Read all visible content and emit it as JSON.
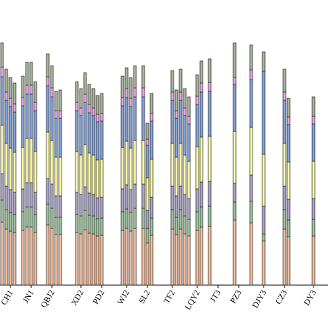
{
  "chart_data": {
    "type": "stacked_bar",
    "categories": [
      null,
      null,
      "CH1",
      null,
      null,
      null,
      null,
      "JN1",
      null,
      null,
      null,
      null,
      "QBJ2",
      null,
      null,
      null,
      null,
      null,
      null,
      "XD2",
      null,
      null,
      null,
      null,
      "PD2",
      null,
      null,
      null,
      null,
      null,
      "WJ2",
      null,
      null,
      null,
      null,
      "SL2",
      null,
      null,
      null,
      null,
      null,
      "TF2",
      null,
      null,
      null,
      null,
      null,
      "LQY2",
      null,
      null,
      null,
      null,
      "JT3",
      null,
      null,
      null,
      null,
      "PZ3",
      null,
      null,
      null,
      null,
      null,
      "DJY3",
      null,
      null,
      null,
      null,
      "CZ3",
      null,
      null,
      null,
      null,
      null,
      null,
      "DY3",
      null,
      null
    ],
    "ylim": [
      0,
      400
    ],
    "series": [
      {
        "color": "#f6bc9c",
        "values": [
          91,
          81,
          78,
          76,
          null,
          79,
          84,
          84,
          76,
          null,
          null,
          87,
          82,
          73,
          73,
          null,
          null,
          null,
          76,
          74,
          80,
          75,
          74,
          71,
          72,
          null,
          null,
          null,
          null,
          79,
          82,
          78,
          82,
          null,
          82,
          61,
          72,
          null,
          null,
          null,
          null,
          81,
          73,
          81,
          74,
          71,
          null,
          79,
          84,
          null,
          85,
          null,
          null,
          null,
          null,
          null,
          94,
          null,
          null,
          null,
          90,
          null,
          null,
          64,
          null,
          null,
          null,
          null,
          81,
          70,
          null,
          null,
          null,
          null,
          null,
          71,
          null,
          null
        ]
      },
      {
        "color": "#98c498",
        "values": [
          32,
          28,
          27,
          26,
          null,
          27,
          29,
          29,
          26,
          null,
          null,
          30,
          29,
          25,
          25,
          null,
          null,
          null,
          26,
          26,
          28,
          26,
          26,
          25,
          25,
          null,
          null,
          null,
          null,
          27,
          28,
          27,
          29,
          null,
          29,
          21,
          25,
          null,
          null,
          null,
          null,
          28,
          25,
          28,
          26,
          24,
          null,
          27,
          29,
          null,
          29,
          null,
          null,
          null,
          null,
          null,
          26,
          null,
          null,
          null,
          31,
          null,
          null,
          10,
          null,
          null,
          null,
          null,
          28,
          24,
          null,
          null,
          null,
          null,
          null,
          24,
          null,
          null
        ]
      },
      {
        "color": "#aba3cc",
        "values": [
          38,
          34,
          33,
          32,
          null,
          33,
          35,
          35,
          32,
          null,
          null,
          37,
          35,
          31,
          31,
          null,
          null,
          null,
          32,
          31,
          34,
          32,
          31,
          30,
          30,
          null,
          null,
          null,
          null,
          33,
          35,
          33,
          35,
          null,
          35,
          26,
          30,
          null,
          null,
          null,
          null,
          34,
          31,
          34,
          31,
          30,
          null,
          33,
          36,
          null,
          36,
          null,
          null,
          null,
          null,
          null,
          27,
          null,
          null,
          null,
          38,
          null,
          null,
          40,
          null,
          null,
          null,
          null,
          34,
          30,
          null,
          null,
          null,
          null,
          null,
          30,
          null,
          null
        ]
      },
      {
        "color": "#fbfba4",
        "values": [
          70,
          62,
          60,
          58,
          null,
          60,
          64,
          64,
          59,
          null,
          null,
          67,
          63,
          56,
          56,
          null,
          null,
          null,
          59,
          57,
          61,
          58,
          57,
          55,
          55,
          null,
          null,
          null,
          null,
          60,
          63,
          60,
          63,
          null,
          63,
          47,
          55,
          null,
          null,
          null,
          null,
          62,
          56,
          62,
          57,
          54,
          null,
          61,
          65,
          null,
          65,
          null,
          null,
          null,
          null,
          null,
          75,
          null,
          null,
          null,
          69,
          null,
          null,
          75,
          null,
          null,
          null,
          null,
          62,
          54,
          null,
          null,
          null,
          null,
          null,
          54,
          null,
          null
        ]
      },
      {
        "color": "#82a2dc",
        "values": [
          70,
          62,
          60,
          58,
          null,
          60,
          64,
          64,
          59,
          null,
          null,
          67,
          63,
          56,
          56,
          null,
          null,
          null,
          59,
          57,
          61,
          58,
          57,
          55,
          55,
          null,
          null,
          null,
          null,
          60,
          63,
          60,
          63,
          null,
          63,
          47,
          55,
          null,
          null,
          null,
          null,
          62,
          56,
          62,
          57,
          54,
          null,
          61,
          65,
          null,
          65,
          null,
          null,
          null,
          null,
          null,
          68,
          null,
          null,
          null,
          69,
          null,
          null,
          120,
          null,
          null,
          null,
          null,
          62,
          54,
          null,
          null,
          null,
          null,
          null,
          54,
          null,
          null
        ]
      },
      {
        "color": "#e8a2e6",
        "values": [
          14,
          12,
          12,
          12,
          null,
          12,
          13,
          13,
          12,
          null,
          null,
          13,
          13,
          11,
          11,
          null,
          null,
          null,
          12,
          11,
          12,
          12,
          11,
          11,
          11,
          null,
          null,
          null,
          null,
          12,
          13,
          12,
          13,
          null,
          13,
          9,
          11,
          null,
          null,
          null,
          null,
          12,
          11,
          12,
          11,
          11,
          null,
          12,
          13,
          null,
          13,
          null,
          null,
          null,
          null,
          null,
          10,
          null,
          null,
          null,
          14,
          null,
          null,
          0,
          null,
          null,
          null,
          null,
          12,
          11,
          null,
          null,
          null,
          null,
          null,
          11,
          null,
          null
        ]
      },
      {
        "color": "#a9b39c",
        "values": [
          35,
          33,
          30,
          30,
          null,
          31,
          33,
          33,
          30,
          null,
          null,
          33,
          32,
          28,
          30,
          null,
          null,
          null,
          30,
          28,
          31,
          29,
          28,
          27,
          29,
          null,
          null,
          null,
          null,
          31,
          30,
          30,
          32,
          null,
          32,
          23,
          29,
          null,
          null,
          null,
          null,
          31,
          30,
          33,
          28,
          28,
          null,
          31,
          32,
          null,
          34,
          null,
          null,
          null,
          null,
          null,
          50,
          null,
          null,
          null,
          36,
          null,
          null,
          28,
          null,
          null,
          null,
          null,
          33,
          27,
          null,
          null,
          null,
          null,
          null,
          28,
          null,
          null
        ]
      }
    ]
  }
}
